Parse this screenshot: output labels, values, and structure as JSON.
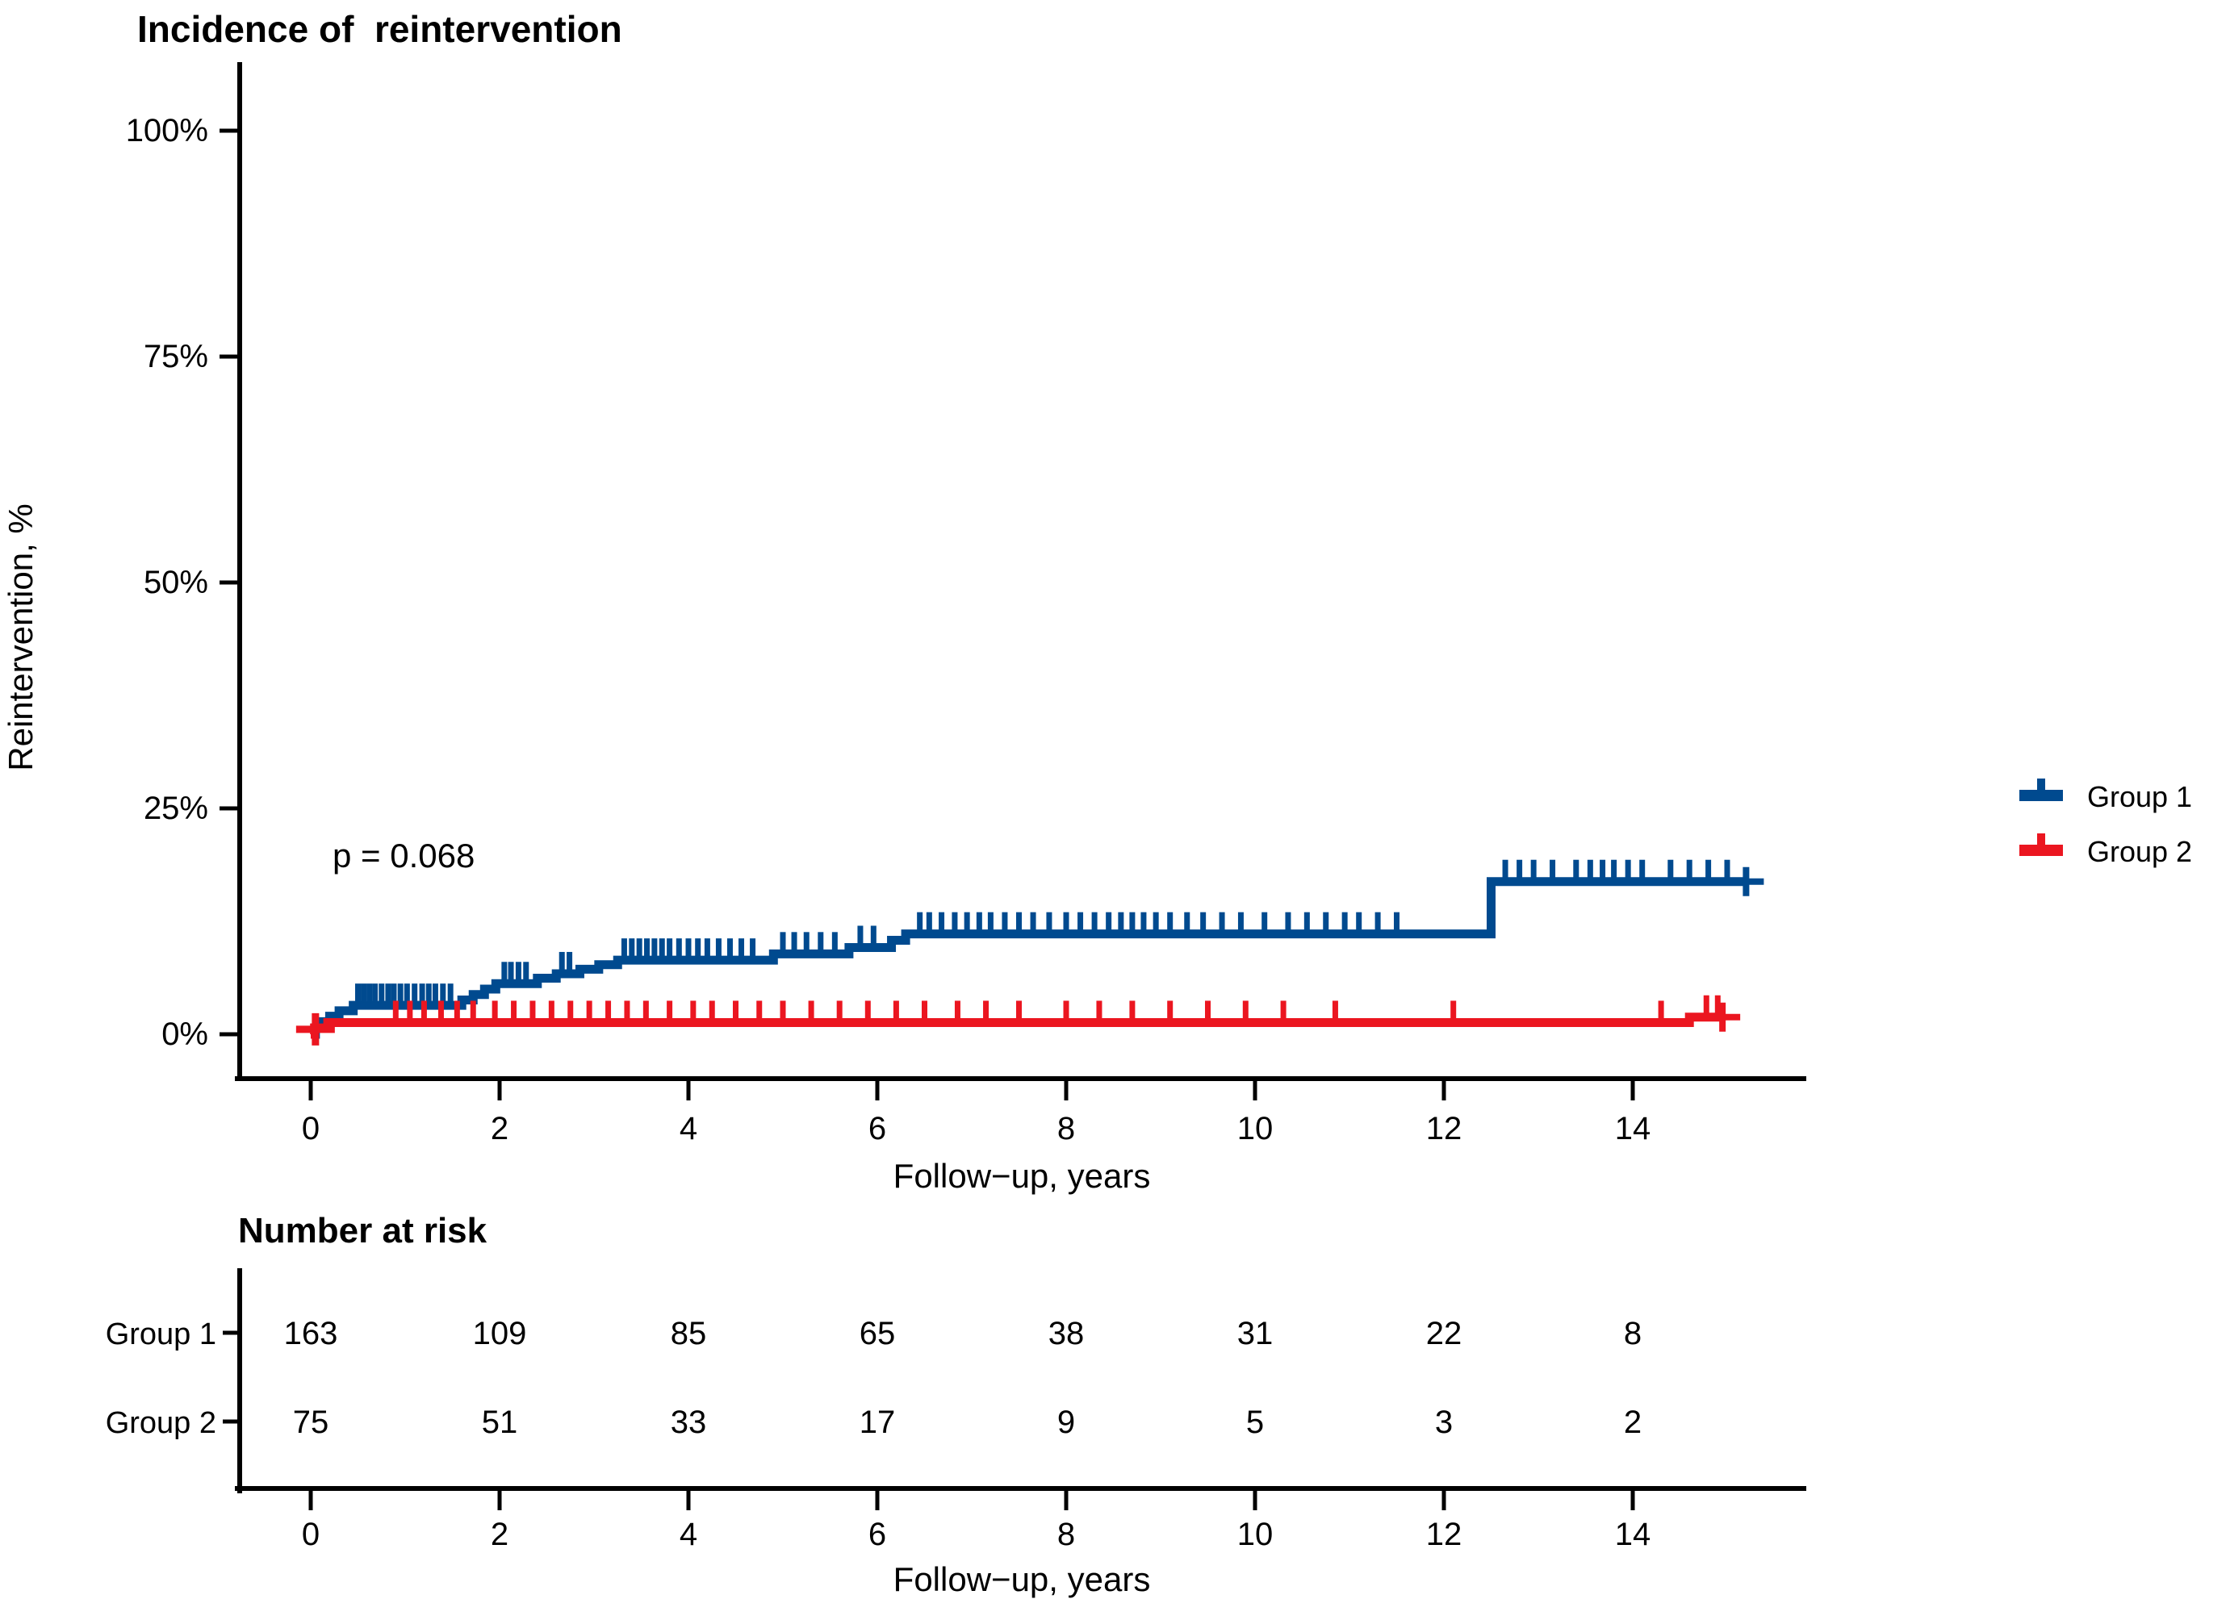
{
  "title": "Incidence of  reintervention",
  "chart_data": {
    "type": "line",
    "subtype": "kaplan-meier-step",
    "title": "Incidence of  reintervention",
    "xlabel": "Follow−up, years",
    "ylabel": "Reintervention, %",
    "annotation": "p = 0.068",
    "xlim": [
      0,
      15.6
    ],
    "ylim": [
      0,
      100
    ],
    "x_ticks": [
      0,
      2,
      4,
      6,
      8,
      10,
      12,
      14
    ],
    "y_ticks": [
      0,
      25,
      50,
      75,
      100
    ],
    "y_tick_labels": [
      "0%",
      "25%",
      "50%",
      "75%",
      "100%"
    ],
    "grid": false,
    "legend_position": "right",
    "series": [
      {
        "name": "Group 1",
        "color": "#004A8F",
        "steps": [
          [
            0,
            0
          ],
          [
            0.05,
            0.7
          ],
          [
            0.12,
            1.4
          ],
          [
            0.2,
            2.0
          ],
          [
            0.3,
            2.6
          ],
          [
            0.45,
            3.2
          ],
          [
            1.6,
            3.8
          ],
          [
            1.72,
            4.4
          ],
          [
            1.84,
            5.0
          ],
          [
            1.96,
            5.6
          ],
          [
            2.4,
            6.2
          ],
          [
            2.6,
            6.7
          ],
          [
            2.85,
            7.2
          ],
          [
            3.05,
            7.7
          ],
          [
            3.25,
            8.2
          ],
          [
            4.9,
            8.9
          ],
          [
            5.7,
            9.6
          ],
          [
            6.15,
            10.4
          ],
          [
            6.3,
            11.1
          ],
          [
            12.5,
            16.9
          ]
        ],
        "end_time": 15.2,
        "end_marker": true,
        "censor_times": [
          0.5,
          0.56,
          0.62,
          0.68,
          0.75,
          0.82,
          0.88,
          0.95,
          1.02,
          1.1,
          1.18,
          1.25,
          1.32,
          1.4,
          1.48,
          2.05,
          2.12,
          2.2,
          2.28,
          2.66,
          2.74,
          3.32,
          3.4,
          3.48,
          3.56,
          3.64,
          3.72,
          3.8,
          3.9,
          4.0,
          4.1,
          4.2,
          4.32,
          4.44,
          4.56,
          4.68,
          5.0,
          5.12,
          5.25,
          5.4,
          5.55,
          5.82,
          5.96,
          6.45,
          6.55,
          6.68,
          6.82,
          6.95,
          7.08,
          7.2,
          7.35,
          7.5,
          7.65,
          7.82,
          8.0,
          8.15,
          8.3,
          8.45,
          8.58,
          8.7,
          8.82,
          8.95,
          9.1,
          9.28,
          9.45,
          9.65,
          9.85,
          10.1,
          10.35,
          10.55,
          10.75,
          10.95,
          11.1,
          11.3,
          11.5,
          12.65,
          12.8,
          12.95,
          13.15,
          13.4,
          13.55,
          13.68,
          13.8,
          13.95,
          14.1,
          14.4,
          14.6,
          14.8,
          15.0
        ]
      },
      {
        "name": "Group 2",
        "color": "#EB1620",
        "steps": [
          [
            0,
            0
          ],
          [
            0.04,
            0.7
          ],
          [
            0.18,
            1.3
          ],
          [
            14.6,
            1.9
          ]
        ],
        "end_time": 14.95,
        "end_marker": true,
        "start_marker": {
          "time": 0.05,
          "value": 0.55
        },
        "censor_times": [
          0.9,
          1.05,
          1.2,
          1.38,
          1.55,
          1.72,
          1.95,
          2.15,
          2.35,
          2.55,
          2.75,
          2.95,
          3.15,
          3.35,
          3.55,
          3.8,
          4.05,
          4.25,
          4.5,
          4.75,
          5.0,
          5.3,
          5.6,
          5.9,
          6.2,
          6.5,
          6.85,
          7.15,
          7.5,
          8.0,
          8.35,
          8.7,
          9.1,
          9.5,
          9.9,
          10.3,
          10.85,
          12.1,
          14.3,
          14.78,
          14.9
        ]
      }
    ]
  },
  "legend": {
    "items": [
      {
        "label": "Group 1",
        "color": "#004A8F"
      },
      {
        "label": "Group 2",
        "color": "#EB1620"
      }
    ]
  },
  "risk_table": {
    "title": "Number at risk",
    "xlabel": "Follow−up, years",
    "x_ticks": [
      0,
      2,
      4,
      6,
      8,
      10,
      12,
      14
    ],
    "rows": [
      {
        "label": "Group 1",
        "color": "#2F66B0",
        "values": [
          "163",
          "109",
          "85",
          "65",
          "38",
          "31",
          "22",
          "8"
        ]
      },
      {
        "label": "Group 2",
        "color": "#F51D1D",
        "values": [
          "75",
          "51",
          "33",
          "17",
          "9",
          "5",
          "3",
          "2"
        ]
      }
    ]
  }
}
